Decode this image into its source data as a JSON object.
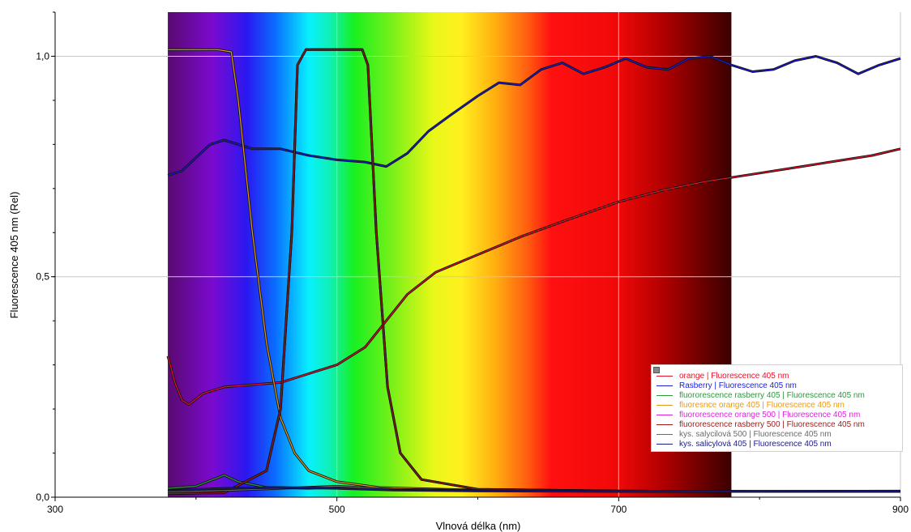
{
  "chart_data": {
    "type": "line",
    "xlabel": "Vlnová délka (nm)",
    "ylabel": "Fluorescence 405 nm (Rel)",
    "xlim": [
      300,
      900
    ],
    "ylim": [
      0,
      1.1
    ],
    "x_ticks": [
      300,
      500,
      700,
      900
    ],
    "x_tick_labels": [
      "300",
      "500",
      "700",
      "900"
    ],
    "y_ticks": [
      0,
      0.5,
      1.0
    ],
    "y_tick_labels": [
      "0,0",
      "0,5",
      "1,0"
    ],
    "grid": true,
    "visible_spectrum_background": [
      380,
      780
    ],
    "legend_position": "bottom-right",
    "series": [
      {
        "name": "orange | Fluorescence 405 nm",
        "color": "#e8102a",
        "points": [
          [
            380,
            0.32
          ],
          [
            385,
            0.26
          ],
          [
            390,
            0.22
          ],
          [
            395,
            0.21
          ],
          [
            405,
            0.235
          ],
          [
            420,
            0.25
          ],
          [
            440,
            0.255
          ],
          [
            460,
            0.26
          ],
          [
            480,
            0.28
          ],
          [
            500,
            0.3
          ],
          [
            520,
            0.34
          ],
          [
            535,
            0.4
          ],
          [
            550,
            0.46
          ],
          [
            570,
            0.51
          ],
          [
            600,
            0.55
          ],
          [
            630,
            0.59
          ],
          [
            660,
            0.625
          ],
          [
            700,
            0.67
          ],
          [
            730,
            0.695
          ],
          [
            760,
            0.715
          ],
          [
            780,
            0.725
          ],
          [
            800,
            0.735
          ],
          [
            830,
            0.75
          ],
          [
            860,
            0.765
          ],
          [
            880,
            0.775
          ],
          [
            900,
            0.79
          ]
        ]
      },
      {
        "name": "Rasberry | Fluorescence 405 nm",
        "color": "#1a1ae0",
        "points": [
          [
            380,
            0.73
          ],
          [
            390,
            0.74
          ],
          [
            400,
            0.77
          ],
          [
            410,
            0.8
          ],
          [
            420,
            0.81
          ],
          [
            440,
            0.79
          ],
          [
            460,
            0.79
          ],
          [
            480,
            0.775
          ],
          [
            500,
            0.765
          ],
          [
            520,
            0.76
          ],
          [
            535,
            0.75
          ],
          [
            550,
            0.78
          ],
          [
            565,
            0.83
          ],
          [
            580,
            0.865
          ],
          [
            600,
            0.91
          ],
          [
            615,
            0.94
          ],
          [
            630,
            0.935
          ],
          [
            645,
            0.97
          ],
          [
            660,
            0.985
          ],
          [
            675,
            0.96
          ],
          [
            690,
            0.975
          ],
          [
            705,
            0.995
          ],
          [
            720,
            0.975
          ],
          [
            735,
            0.97
          ],
          [
            750,
            0.995
          ],
          [
            765,
            1.0
          ],
          [
            780,
            0.98
          ],
          [
            795,
            0.965
          ],
          [
            810,
            0.97
          ],
          [
            825,
            0.99
          ],
          [
            840,
            1.0
          ],
          [
            855,
            0.985
          ],
          [
            870,
            0.96
          ],
          [
            885,
            0.98
          ],
          [
            900,
            0.995
          ]
        ]
      },
      {
        "name": "fluororescence rasberry 405 | Fluorescence 405 nm",
        "color": "#2a9a3a",
        "points": [
          [
            380,
            0.02
          ],
          [
            400,
            0.025
          ],
          [
            420,
            0.05
          ],
          [
            430,
            0.035
          ],
          [
            450,
            0.022
          ],
          [
            480,
            0.02
          ],
          [
            500,
            0.022
          ],
          [
            550,
            0.018
          ],
          [
            600,
            0.015
          ],
          [
            700,
            0.014
          ],
          [
            800,
            0.013
          ],
          [
            900,
            0.013
          ]
        ]
      },
      {
        "name": "fluoresnce orange 405 | Fluorescence 405 nm",
        "color": "#e89a1a",
        "points": [
          [
            380,
            1.015
          ],
          [
            415,
            1.015
          ],
          [
            425,
            1.01
          ],
          [
            430,
            0.9
          ],
          [
            440,
            0.6
          ],
          [
            450,
            0.35
          ],
          [
            460,
            0.18
          ],
          [
            470,
            0.1
          ],
          [
            480,
            0.06
          ],
          [
            500,
            0.035
          ],
          [
            530,
            0.022
          ],
          [
            600,
            0.016
          ],
          [
            700,
            0.014
          ],
          [
            800,
            0.013
          ],
          [
            900,
            0.013
          ]
        ]
      },
      {
        "name": "fluororescence orange 500 | Fluorescence 405 nm",
        "color": "#e020e0",
        "points": [
          [
            380,
            0.008
          ],
          [
            420,
            0.01
          ],
          [
            450,
            0.06
          ],
          [
            460,
            0.2
          ],
          [
            468,
            0.6
          ],
          [
            472,
            0.98
          ],
          [
            478,
            1.015
          ],
          [
            518,
            1.015
          ],
          [
            522,
            0.98
          ],
          [
            528,
            0.6
          ],
          [
            536,
            0.25
          ],
          [
            545,
            0.1
          ],
          [
            560,
            0.04
          ],
          [
            600,
            0.018
          ],
          [
            700,
            0.014
          ],
          [
            800,
            0.013
          ],
          [
            900,
            0.013
          ]
        ]
      },
      {
        "name": "fluororescence rasberry 500 | Fluorescence 405 nm",
        "color": "#9a1a1a",
        "points": [
          [
            380,
            0.008
          ],
          [
            420,
            0.01
          ],
          [
            450,
            0.06
          ],
          [
            460,
            0.2
          ],
          [
            468,
            0.6
          ],
          [
            472,
            0.98
          ],
          [
            478,
            1.015
          ],
          [
            518,
            1.015
          ],
          [
            522,
            0.98
          ],
          [
            528,
            0.6
          ],
          [
            536,
            0.25
          ],
          [
            545,
            0.1
          ],
          [
            560,
            0.04
          ],
          [
            600,
            0.018
          ],
          [
            700,
            0.014
          ],
          [
            800,
            0.013
          ],
          [
            900,
            0.013
          ]
        ]
      },
      {
        "name": "kys. salycilová 500 | Fluorescence 405 nm",
        "color": "#6a6a6a",
        "points": [
          [
            380,
            0.012
          ],
          [
            420,
            0.015
          ],
          [
            460,
            0.02
          ],
          [
            500,
            0.025
          ],
          [
            540,
            0.018
          ],
          [
            600,
            0.015
          ],
          [
            700,
            0.013
          ],
          [
            800,
            0.013
          ],
          [
            900,
            0.013
          ]
        ]
      },
      {
        "name": "kys. salicylová 405 | Fluorescence 405 nm",
        "color": "#1a1a80",
        "points": [
          [
            380,
            0.015
          ],
          [
            420,
            0.02
          ],
          [
            460,
            0.022
          ],
          [
            500,
            0.02
          ],
          [
            540,
            0.016
          ],
          [
            600,
            0.014
          ],
          [
            700,
            0.013
          ],
          [
            800,
            0.013
          ],
          [
            900,
            0.014
          ]
        ]
      }
    ]
  },
  "legend": {
    "entries": [
      {
        "label": "orange | Fluorescence 405 nm",
        "color": "#e8102a"
      },
      {
        "label": "Rasberry | Fluorescence 405 nm",
        "color": "#1a1ae0"
      },
      {
        "label": "fluororescence rasberry 405 | Fluorescence 405 nm",
        "color": "#2a9a3a"
      },
      {
        "label": "fluoresnce orange 405 | Fluorescence 405 nm",
        "color": "#e89a1a"
      },
      {
        "label": "fluororescence orange 500 | Fluorescence 405 nm",
        "color": "#e020e0"
      },
      {
        "label": "fluororescence rasberry 500 | Fluorescence 405 nm",
        "color": "#9a1a1a"
      },
      {
        "label": "kys. salycilová 500 | Fluorescence 405 nm",
        "color": "#6a6a6a"
      },
      {
        "label": "kys. salicylová 405 | Fluorescence 405 nm",
        "color": "#1a1a80"
      }
    ]
  }
}
